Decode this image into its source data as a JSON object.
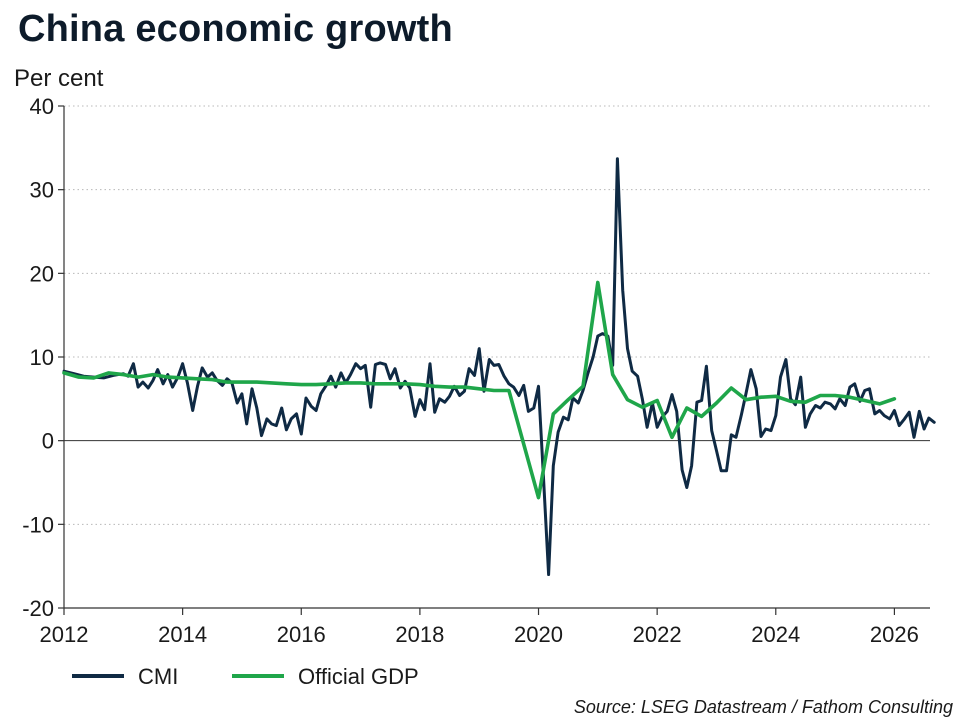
{
  "chart_data": {
    "type": "line",
    "title": "China economic growth",
    "ylabel": "Per cent",
    "xlabel": "",
    "source": "Source: LSEG Datastream / Fathom Consulting",
    "xlim": [
      2012,
      2026.6
    ],
    "ylim": [
      -20,
      40
    ],
    "x_ticks": [
      2012,
      2014,
      2016,
      2018,
      2020,
      2022,
      2024,
      2026
    ],
    "y_ticks": [
      -20,
      -10,
      0,
      10,
      20,
      30,
      40
    ],
    "grid": "horizontal dotted",
    "legend": "bottom-left",
    "series": [
      {
        "name": "CMI",
        "color": "#0f2a44",
        "points": [
          [
            2012.0,
            8.3
          ],
          [
            2012.17,
            8.0
          ],
          [
            2012.33,
            7.7
          ],
          [
            2012.5,
            7.6
          ],
          [
            2012.67,
            7.5
          ],
          [
            2012.83,
            7.8
          ],
          [
            2013.0,
            8.0
          ],
          [
            2013.08,
            7.7
          ],
          [
            2013.17,
            9.2
          ],
          [
            2013.25,
            6.4
          ],
          [
            2013.33,
            7.0
          ],
          [
            2013.42,
            6.3
          ],
          [
            2013.5,
            7.2
          ],
          [
            2013.58,
            8.5
          ],
          [
            2013.67,
            6.8
          ],
          [
            2013.75,
            7.9
          ],
          [
            2013.83,
            6.4
          ],
          [
            2013.92,
            7.6
          ],
          [
            2014.0,
            9.2
          ],
          [
            2014.08,
            6.9
          ],
          [
            2014.17,
            3.6
          ],
          [
            2014.25,
            6.5
          ],
          [
            2014.33,
            8.7
          ],
          [
            2014.42,
            7.6
          ],
          [
            2014.5,
            8.1
          ],
          [
            2014.58,
            7.2
          ],
          [
            2014.67,
            6.6
          ],
          [
            2014.75,
            7.4
          ],
          [
            2014.83,
            6.9
          ],
          [
            2014.92,
            4.5
          ],
          [
            2015.0,
            5.6
          ],
          [
            2015.08,
            2.0
          ],
          [
            2015.17,
            6.2
          ],
          [
            2015.25,
            3.9
          ],
          [
            2015.33,
            0.6
          ],
          [
            2015.42,
            2.6
          ],
          [
            2015.5,
            2.0
          ],
          [
            2015.58,
            1.8
          ],
          [
            2015.67,
            3.9
          ],
          [
            2015.75,
            1.3
          ],
          [
            2015.83,
            2.6
          ],
          [
            2015.92,
            3.2
          ],
          [
            2016.0,
            0.8
          ],
          [
            2016.08,
            5.1
          ],
          [
            2016.17,
            4.1
          ],
          [
            2016.25,
            3.6
          ],
          [
            2016.33,
            5.6
          ],
          [
            2016.42,
            6.6
          ],
          [
            2016.5,
            7.7
          ],
          [
            2016.58,
            6.4
          ],
          [
            2016.67,
            8.1
          ],
          [
            2016.75,
            6.9
          ],
          [
            2016.83,
            7.9
          ],
          [
            2016.92,
            9.2
          ],
          [
            2017.0,
            8.6
          ],
          [
            2017.08,
            9.0
          ],
          [
            2017.17,
            4.0
          ],
          [
            2017.25,
            9.1
          ],
          [
            2017.33,
            9.3
          ],
          [
            2017.42,
            9.1
          ],
          [
            2017.5,
            7.4
          ],
          [
            2017.58,
            8.6
          ],
          [
            2017.67,
            6.3
          ],
          [
            2017.75,
            7.1
          ],
          [
            2017.83,
            6.3
          ],
          [
            2017.92,
            2.9
          ],
          [
            2018.0,
            4.9
          ],
          [
            2018.08,
            3.7
          ],
          [
            2018.17,
            9.2
          ],
          [
            2018.25,
            3.4
          ],
          [
            2018.33,
            5.0
          ],
          [
            2018.42,
            4.6
          ],
          [
            2018.5,
            5.3
          ],
          [
            2018.58,
            6.5
          ],
          [
            2018.67,
            5.4
          ],
          [
            2018.75,
            5.9
          ],
          [
            2018.83,
            8.6
          ],
          [
            2018.92,
            7.8
          ],
          [
            2019.0,
            11.0
          ],
          [
            2019.08,
            5.9
          ],
          [
            2019.17,
            9.7
          ],
          [
            2019.25,
            9.0
          ],
          [
            2019.33,
            9.1
          ],
          [
            2019.42,
            7.7
          ],
          [
            2019.5,
            6.8
          ],
          [
            2019.58,
            6.4
          ],
          [
            2019.67,
            5.4
          ],
          [
            2019.75,
            6.6
          ],
          [
            2019.83,
            3.5
          ],
          [
            2019.92,
            3.9
          ],
          [
            2020.0,
            6.5
          ],
          [
            2020.08,
            -4.0
          ],
          [
            2020.17,
            -16.0
          ],
          [
            2020.25,
            -3.0
          ],
          [
            2020.33,
            1.0
          ],
          [
            2020.42,
            2.8
          ],
          [
            2020.5,
            2.5
          ],
          [
            2020.58,
            5.1
          ],
          [
            2020.67,
            4.5
          ],
          [
            2020.75,
            6.0
          ],
          [
            2020.83,
            8.0
          ],
          [
            2020.92,
            10.0
          ],
          [
            2021.0,
            12.5
          ],
          [
            2021.08,
            12.8
          ],
          [
            2021.17,
            12.5
          ],
          [
            2021.25,
            9.0
          ],
          [
            2021.33,
            33.7
          ],
          [
            2021.42,
            18.0
          ],
          [
            2021.5,
            11.0
          ],
          [
            2021.58,
            8.3
          ],
          [
            2021.67,
            7.7
          ],
          [
            2021.75,
            5.0
          ],
          [
            2021.83,
            1.6
          ],
          [
            2021.92,
            4.5
          ],
          [
            2022.0,
            1.6
          ],
          [
            2022.08,
            2.8
          ],
          [
            2022.17,
            3.5
          ],
          [
            2022.25,
            5.5
          ],
          [
            2022.33,
            3.5
          ],
          [
            2022.42,
            -3.5
          ],
          [
            2022.5,
            -5.6
          ],
          [
            2022.58,
            -3.0
          ],
          [
            2022.67,
            4.6
          ],
          [
            2022.75,
            4.8
          ],
          [
            2022.83,
            8.9
          ],
          [
            2022.92,
            1.2
          ],
          [
            2023.0,
            -1.2
          ],
          [
            2023.08,
            -3.6
          ],
          [
            2023.17,
            -3.6
          ],
          [
            2023.25,
            0.7
          ],
          [
            2023.33,
            0.4
          ],
          [
            2023.42,
            3.1
          ],
          [
            2023.5,
            5.7
          ],
          [
            2023.58,
            8.5
          ],
          [
            2023.67,
            6.2
          ],
          [
            2023.75,
            0.5
          ],
          [
            2023.83,
            1.4
          ],
          [
            2023.92,
            1.2
          ],
          [
            2024.0,
            3.0
          ],
          [
            2024.08,
            7.6
          ],
          [
            2024.17,
            9.7
          ],
          [
            2024.25,
            5.0
          ],
          [
            2024.33,
            4.3
          ],
          [
            2024.42,
            7.6
          ],
          [
            2024.5,
            1.6
          ],
          [
            2024.58,
            3.2
          ],
          [
            2024.67,
            4.2
          ],
          [
            2024.75,
            3.9
          ],
          [
            2024.83,
            4.6
          ],
          [
            2024.92,
            4.4
          ],
          [
            2025.0,
            3.8
          ],
          [
            2025.08,
            5.0
          ],
          [
            2025.17,
            4.2
          ],
          [
            2025.25,
            6.4
          ],
          [
            2025.33,
            6.8
          ],
          [
            2025.42,
            4.7
          ],
          [
            2025.5,
            6.0
          ],
          [
            2025.58,
            6.2
          ],
          [
            2025.67,
            3.2
          ],
          [
            2025.75,
            3.6
          ],
          [
            2025.83,
            3.0
          ],
          [
            2025.92,
            2.6
          ],
          [
            2026.0,
            3.6
          ],
          [
            2026.08,
            1.8
          ],
          [
            2026.17,
            2.6
          ],
          [
            2026.25,
            3.4
          ],
          [
            2026.33,
            0.4
          ],
          [
            2026.42,
            3.5
          ],
          [
            2026.5,
            1.4
          ],
          [
            2026.58,
            2.7
          ],
          [
            2026.67,
            2.2
          ]
        ]
      },
      {
        "name": "Official GDP",
        "color": "#1fa64a",
        "points": [
          [
            2012.0,
            8.1
          ],
          [
            2012.25,
            7.6
          ],
          [
            2012.5,
            7.5
          ],
          [
            2012.75,
            8.1
          ],
          [
            2013.0,
            7.9
          ],
          [
            2013.25,
            7.6
          ],
          [
            2013.5,
            7.9
          ],
          [
            2013.75,
            7.6
          ],
          [
            2014.0,
            7.5
          ],
          [
            2014.25,
            7.4
          ],
          [
            2014.5,
            7.3
          ],
          [
            2014.75,
            7.0
          ],
          [
            2015.0,
            7.0
          ],
          [
            2015.25,
            7.0
          ],
          [
            2015.5,
            6.9
          ],
          [
            2015.75,
            6.8
          ],
          [
            2016.0,
            6.7
          ],
          [
            2016.25,
            6.7
          ],
          [
            2016.5,
            6.8
          ],
          [
            2016.75,
            6.9
          ],
          [
            2017.0,
            6.9
          ],
          [
            2017.25,
            6.8
          ],
          [
            2017.5,
            6.8
          ],
          [
            2017.75,
            6.8
          ],
          [
            2018.0,
            6.7
          ],
          [
            2018.25,
            6.5
          ],
          [
            2018.5,
            6.4
          ],
          [
            2018.75,
            6.4
          ],
          [
            2019.0,
            6.2
          ],
          [
            2019.25,
            6.0
          ],
          [
            2019.5,
            6.0
          ],
          [
            2020.0,
            -6.8
          ],
          [
            2020.25,
            3.2
          ],
          [
            2020.5,
            4.9
          ],
          [
            2020.75,
            6.5
          ],
          [
            2021.0,
            18.9
          ],
          [
            2021.25,
            7.9
          ],
          [
            2021.5,
            4.9
          ],
          [
            2021.75,
            4.0
          ],
          [
            2022.0,
            4.8
          ],
          [
            2022.25,
            0.4
          ],
          [
            2022.5,
            3.9
          ],
          [
            2022.75,
            2.9
          ],
          [
            2023.0,
            4.5
          ],
          [
            2023.25,
            6.3
          ],
          [
            2023.5,
            4.9
          ],
          [
            2023.75,
            5.2
          ],
          [
            2024.0,
            5.3
          ],
          [
            2024.25,
            4.7
          ],
          [
            2024.5,
            4.6
          ],
          [
            2024.75,
            5.4
          ],
          [
            2025.0,
            5.4
          ],
          [
            2025.25,
            5.2
          ],
          [
            2025.5,
            4.8
          ],
          [
            2025.75,
            4.4
          ],
          [
            2026.0,
            5.0
          ]
        ]
      }
    ]
  }
}
